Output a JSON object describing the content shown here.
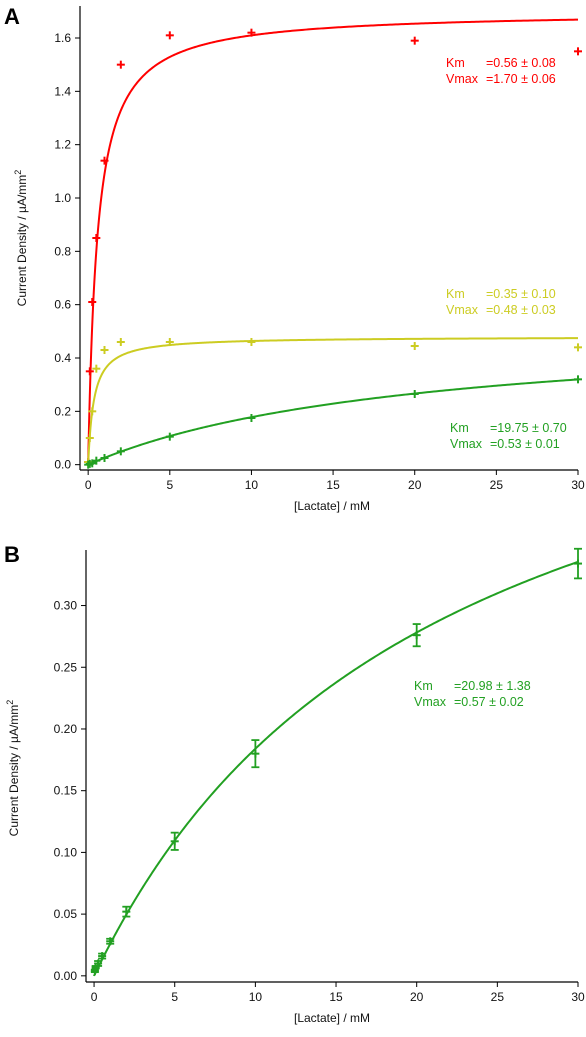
{
  "chart_data": [
    {
      "type": "scatter",
      "panel_label": "A",
      "xlabel": "[Lactate] / mM",
      "ylabel": "Current Density / µA/mm",
      "ylabel_sup": "2",
      "xlim": [
        -0.5,
        30
      ],
      "ylim": [
        -0.02,
        1.72
      ],
      "xticks": [
        0,
        5,
        10,
        15,
        20,
        25,
        30
      ],
      "yticks": [
        0.0,
        0.2,
        0.4,
        0.6,
        0.8,
        1.0,
        1.2,
        1.4,
        1.6
      ],
      "ytick_labels": [
        "0.0",
        "0.2",
        "0.4",
        "0.6",
        "0.8",
        "1.0",
        "1.2",
        "1.4",
        "1.6"
      ],
      "grid": false,
      "series": [
        {
          "color": "#ff0000",
          "x": [
            0,
            0.1,
            0.25,
            0.5,
            1,
            2,
            5,
            10,
            20,
            30
          ],
          "y": [
            0.01,
            0.35,
            0.61,
            0.85,
            1.14,
            1.5,
            1.61,
            1.62,
            1.59,
            1.55
          ],
          "fit": {
            "model": "michaelis-menten",
            "Km": 0.56,
            "Vmax": 1.7
          },
          "annotation": [
            [
              "Km",
              "=0.56 ± 0.08"
            ],
            [
              "Vmax",
              "=1.70 ± 0.06"
            ]
          ]
        },
        {
          "color": "#cccc22",
          "x": [
            0,
            0.1,
            0.25,
            0.5,
            1,
            2,
            5,
            10,
            20,
            30
          ],
          "y": [
            0.01,
            0.1,
            0.2,
            0.36,
            0.43,
            0.46,
            0.46,
            0.46,
            0.445,
            0.44
          ],
          "fit": {
            "model": "michaelis-menten",
            "Km": 0.35,
            "Vmax": 0.48
          },
          "annotation": [
            [
              "Km",
              "=0.35 ± 0.10"
            ],
            [
              "Vmax",
              "=0.48 ± 0.03"
            ]
          ]
        },
        {
          "color": "#22a022",
          "x": [
            0,
            0.1,
            0.25,
            0.5,
            1,
            2,
            5,
            10,
            20,
            30
          ],
          "y": [
            0.0,
            0.003,
            0.005,
            0.015,
            0.025,
            0.05,
            0.105,
            0.175,
            0.265,
            0.32
          ],
          "fit": {
            "model": "michaelis-menten",
            "Km": 19.75,
            "Vmax": 0.53
          },
          "annotation": [
            [
              "Km",
              "=19.75 ± 0.70"
            ],
            [
              "Vmax",
              "=0.53 ± 0.01"
            ]
          ]
        }
      ]
    },
    {
      "type": "scatter",
      "panel_label": "B",
      "xlabel": "[Lactate] / mM",
      "ylabel": "Current Density / µA/mm",
      "ylabel_sup": "2",
      "xlim": [
        -0.5,
        30
      ],
      "ylim": [
        -0.005,
        0.345
      ],
      "xticks": [
        0,
        5,
        10,
        15,
        20,
        25,
        30
      ],
      "yticks": [
        0.0,
        0.05,
        0.1,
        0.15,
        0.2,
        0.25,
        0.3
      ],
      "ytick_labels": [
        "0.00",
        "0.05",
        "0.10",
        "0.15",
        "0.20",
        "0.25",
        "0.30"
      ],
      "grid": false,
      "series": [
        {
          "color": "#22a022",
          "x": [
            0.05,
            0.1,
            0.25,
            0.5,
            1,
            2,
            5,
            10,
            20,
            30
          ],
          "y": [
            0.004,
            0.007,
            0.01,
            0.016,
            0.028,
            0.052,
            0.109,
            0.18,
            0.276,
            0.334
          ],
          "err": [
            0.001,
            0.001,
            0.002,
            0.002,
            0.002,
            0.004,
            0.007,
            0.011,
            0.009,
            0.012
          ],
          "fit": {
            "model": "michaelis-menten",
            "Km": 20.98,
            "Vmax": 0.57
          },
          "annotation": [
            [
              "Km",
              "=20.98 ± 1.38"
            ],
            [
              "Vmax",
              "=0.57 ± 0.02"
            ]
          ]
        }
      ]
    }
  ]
}
